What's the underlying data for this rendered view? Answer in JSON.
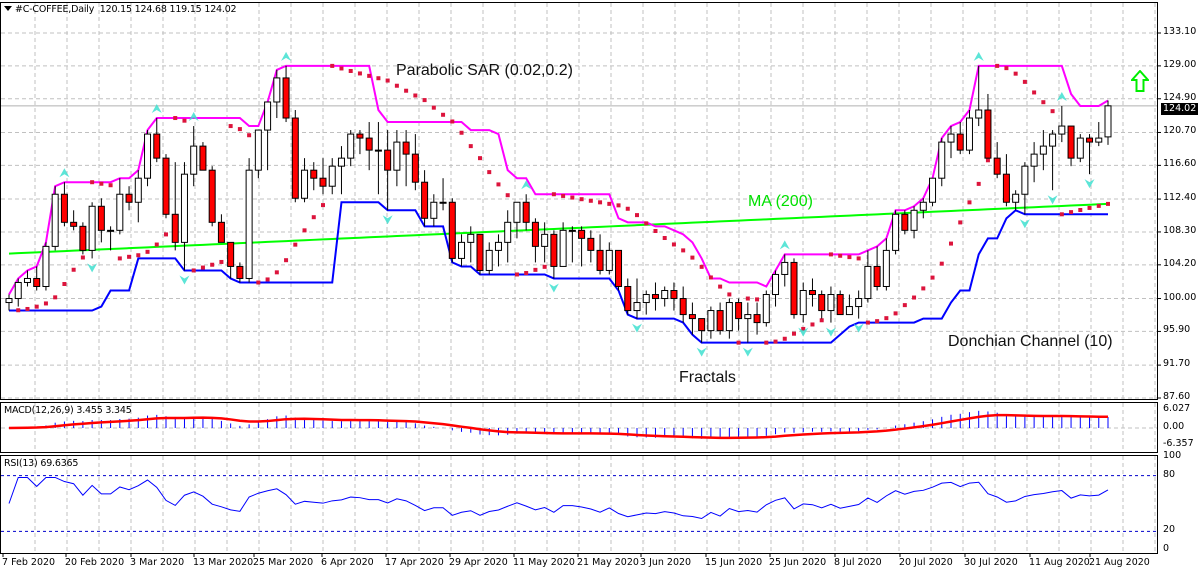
{
  "header": {
    "symbol": "#C-COFFEE,Daily",
    "ohlc": "120.15 124.68 119.15 124.02"
  },
  "annotations": {
    "sar": "Parabolic SAR (0.02,0.2)",
    "ma": "MA (200)",
    "donchian": "Donchian Channel (10)",
    "fractals": "Fractals"
  },
  "macd": {
    "label": "MACD(12,26,9) 3.455 3.345"
  },
  "rsi": {
    "label": "RSI(13) 69.6365"
  },
  "price_axis": {
    "ticks": [
      "133.10",
      "129.00",
      "124.90",
      "120.70",
      "116.60",
      "112.40",
      "108.30",
      "104.20",
      "100.00",
      "95.90",
      "91.70",
      "87.60"
    ],
    "current": "124.02"
  },
  "macd_axis": {
    "ticks": [
      "6.027",
      "0.00",
      "-6.357"
    ]
  },
  "rsi_axis": {
    "ticks": [
      "100",
      "80",
      "20",
      "0"
    ]
  },
  "time_axis": {
    "labels": [
      "7 Feb 2020",
      "20 Feb 2020",
      "3 Mar 2020",
      "13 Mar 2020",
      "25 Mar 2020",
      "6 Apr 2020",
      "17 Apr 2020",
      "29 Apr 2020",
      "11 May 2020",
      "21 May 2020",
      "3 Jun 2020",
      "15 Jun 2020",
      "25 Jun 2020",
      "8 Jul 2020",
      "20 Jul 2020",
      "30 Jul 2020",
      "11 Aug 2020",
      "21 Aug 2020"
    ]
  },
  "colors": {
    "bull": "#ffffff",
    "bear": "#ff0000",
    "donchian_upper": "#ff00ff",
    "donchian_lower": "#0000ff",
    "ma": "#00ff00",
    "sar": "#dc143c",
    "fractal": "#40e0d0",
    "macd_hist": "#0000ff",
    "macd_signal": "#ff0000",
    "rsi": "#0000ff",
    "arrow": "#00ff00"
  },
  "chart_data": {
    "type": "candlestick",
    "title": "#C-COFFEE,Daily",
    "ylim": [
      87.6,
      133.1
    ],
    "candles": [
      [
        99.5,
        100.5,
        98.5,
        100.0
      ],
      [
        100.0,
        102.5,
        99.0,
        102.0
      ],
      [
        102.0,
        103.5,
        101.5,
        102.5
      ],
      [
        102.5,
        104.0,
        101.0,
        101.5
      ],
      [
        101.5,
        107.0,
        101.0,
        106.5
      ],
      [
        106.5,
        114.0,
        106.0,
        113.0
      ],
      [
        113.0,
        114.5,
        109.0,
        109.5
      ],
      [
        109.5,
        111.0,
        108.5,
        109.0
      ],
      [
        109.0,
        109.5,
        105.5,
        106.0
      ],
      [
        106.0,
        112.0,
        105.0,
        111.5
      ],
      [
        111.5,
        112.5,
        107.0,
        108.5
      ],
      [
        108.5,
        109.0,
        106.0,
        108.5
      ],
      [
        108.5,
        115.0,
        108.0,
        113.0
      ],
      [
        113.0,
        114.0,
        111.0,
        112.0
      ],
      [
        112.0,
        116.0,
        109.5,
        115.0
      ],
      [
        115.0,
        121.0,
        114.0,
        120.5
      ],
      [
        120.5,
        122.5,
        117.0,
        117.5
      ],
      [
        117.5,
        118.0,
        110.0,
        110.5
      ],
      [
        110.5,
        117.0,
        106.0,
        107.0
      ],
      [
        107.0,
        117.0,
        103.5,
        115.5
      ],
      [
        115.5,
        121.5,
        114.0,
        119.0
      ],
      [
        119.0,
        119.5,
        116.0,
        116.0
      ],
      [
        116.0,
        116.5,
        109.0,
        109.5
      ],
      [
        109.5,
        110.5,
        107.5,
        107.0
      ],
      [
        107.0,
        105.5,
        102.5,
        104.0
      ],
      [
        104.0,
        104.5,
        102.0,
        102.5
      ],
      [
        102.5,
        117.5,
        102.0,
        116.0
      ],
      [
        116.0,
        121.0,
        115.0,
        121.0
      ],
      [
        121.0,
        124.5,
        116.0,
        124.5
      ],
      [
        124.5,
        128.5,
        122.5,
        127.5
      ],
      [
        127.5,
        129.0,
        122.0,
        122.5
      ],
      [
        122.5,
        123.5,
        112.0,
        112.5
      ],
      [
        112.5,
        117.5,
        112.0,
        116.0
      ],
      [
        116.0,
        117.0,
        113.5,
        115.0
      ],
      [
        115.0,
        117.5,
        113.0,
        114.0
      ],
      [
        114.0,
        117.5,
        113.0,
        116.5
      ],
      [
        116.5,
        119.0,
        113.0,
        117.5
      ],
      [
        117.5,
        121.0,
        116.5,
        120.5
      ],
      [
        120.5,
        121.0,
        118.0,
        120.0
      ],
      [
        120.0,
        122.0,
        116.0,
        118.5
      ],
      [
        118.5,
        122.0,
        113.0,
        118.5
      ],
      [
        118.5,
        121.0,
        111.0,
        116.0
      ],
      [
        116.0,
        121.0,
        114.0,
        119.5
      ],
      [
        119.5,
        121.0,
        114.0,
        118.0
      ],
      [
        118.0,
        120.5,
        113.5,
        114.5
      ],
      [
        114.5,
        116.0,
        109.0,
        110.0
      ],
      [
        110.0,
        113.0,
        109.0,
        112.0
      ],
      [
        112.0,
        115.0,
        111.0,
        112.0
      ],
      [
        112.0,
        112.5,
        104.5,
        105.0
      ],
      [
        105.0,
        108.0,
        104.0,
        107.0
      ],
      [
        107.0,
        109.0,
        104.5,
        108.0
      ],
      [
        108.0,
        107.5,
        103.0,
        103.5
      ],
      [
        103.5,
        107.0,
        103.0,
        106.0
      ],
      [
        106.0,
        108.0,
        104.0,
        107.0
      ],
      [
        107.0,
        111.0,
        104.5,
        109.5
      ],
      [
        109.5,
        112.0,
        107.5,
        112.0
      ],
      [
        112.0,
        113.0,
        108.5,
        109.5
      ],
      [
        109.5,
        110.0,
        104.5,
        106.5
      ],
      [
        106.5,
        109.5,
        104.5,
        108.0
      ],
      [
        108.0,
        108.5,
        102.5,
        104.0
      ],
      [
        104.0,
        109.5,
        104.0,
        108.5
      ],
      [
        108.5,
        109.0,
        104.5,
        108.5
      ],
      [
        108.5,
        109.0,
        104.0,
        107.5
      ],
      [
        107.5,
        108.5,
        104.5,
        106.0
      ],
      [
        106.0,
        108.0,
        103.0,
        103.5
      ],
      [
        103.5,
        107.0,
        103.0,
        106.0
      ],
      [
        106.0,
        105.0,
        101.0,
        101.5
      ],
      [
        101.5,
        102.5,
        98.0,
        98.5
      ],
      [
        98.5,
        102.5,
        97.5,
        99.5
      ],
      [
        99.5,
        101.0,
        98.0,
        100.5
      ],
      [
        100.5,
        102.0,
        98.5,
        100.0
      ],
      [
        100.0,
        101.5,
        99.0,
        101.0
      ],
      [
        101.0,
        102.0,
        98.5,
        100.0
      ],
      [
        100.0,
        101.5,
        97.0,
        98.0
      ],
      [
        98.0,
        99.5,
        95.5,
        97.5
      ],
      [
        97.5,
        96.5,
        94.5,
        96.0
      ],
      [
        96.0,
        99.0,
        95.0,
        98.5
      ],
      [
        98.5,
        99.5,
        95.5,
        96.0
      ],
      [
        96.0,
        100.0,
        95.0,
        99.5
      ],
      [
        99.5,
        100.0,
        96.0,
        97.5
      ],
      [
        97.5,
        99.5,
        94.5,
        98.0
      ],
      [
        98.0,
        99.5,
        95.5,
        97.0
      ],
      [
        97.0,
        101.0,
        96.5,
        100.5
      ],
      [
        100.5,
        103.5,
        99.0,
        103.0
      ],
      [
        103.0,
        105.5,
        101.5,
        104.5
      ],
      [
        104.5,
        105.0,
        97.5,
        98.0
      ],
      [
        98.0,
        102.0,
        97.0,
        101.0
      ],
      [
        101.0,
        102.5,
        99.0,
        100.5
      ],
      [
        100.5,
        101.0,
        97.5,
        98.5
      ],
      [
        98.5,
        101.5,
        97.0,
        100.5
      ],
      [
        100.5,
        101.0,
        98.0,
        98.0
      ],
      [
        98.0,
        100.5,
        98.0,
        99.0
      ],
      [
        99.0,
        101.0,
        97.5,
        100.0
      ],
      [
        100.0,
        106.0,
        99.5,
        104.0
      ],
      [
        104.0,
        106.5,
        101.0,
        101.5
      ],
      [
        101.5,
        107.5,
        101.0,
        106.0
      ],
      [
        106.0,
        111.0,
        105.5,
        110.5
      ],
      [
        110.5,
        111.0,
        108.0,
        108.5
      ],
      [
        108.5,
        111.5,
        107.5,
        111.0
      ],
      [
        111.0,
        112.5,
        110.0,
        112.0
      ],
      [
        112.0,
        115.0,
        111.5,
        115.0
      ],
      [
        115.0,
        120.0,
        114.0,
        119.5
      ],
      [
        119.5,
        121.5,
        117.5,
        120.5
      ],
      [
        120.5,
        122.0,
        118.0,
        118.5
      ],
      [
        118.5,
        123.5,
        118.0,
        122.5
      ],
      [
        122.5,
        129.0,
        121.5,
        123.5
      ],
      [
        123.5,
        125.5,
        118.0,
        117.5
      ],
      [
        117.5,
        119.5,
        115.0,
        115.5
      ],
      [
        115.5,
        118.0,
        111.5,
        112.0
      ],
      [
        112.0,
        113.5,
        111.0,
        113.0
      ],
      [
        113.0,
        117.0,
        110.5,
        116.5
      ],
      [
        116.5,
        119.5,
        114.5,
        118.0
      ],
      [
        118.0,
        121.0,
        116.0,
        119.0
      ],
      [
        119.0,
        121.0,
        113.5,
        120.5
      ],
      [
        120.5,
        124.0,
        119.5,
        121.5
      ],
      [
        121.5,
        121.5,
        116.5,
        117.5
      ],
      [
        117.5,
        120.5,
        117.0,
        120.0
      ],
      [
        120.0,
        120.5,
        115.5,
        119.5
      ],
      [
        119.5,
        122.0,
        119.0,
        120.0
      ],
      [
        120.15,
        124.68,
        119.15,
        124.02
      ]
    ],
    "indicators": [
      "Parabolic SAR (0.02,0.2)",
      "MA (200)",
      "Donchian Channel (10)",
      "Fractals",
      "MACD(12,26,9)",
      "RSI(13)"
    ],
    "macd_values": {
      "main": 3.455,
      "signal": 3.345
    },
    "rsi_value": 69.6365,
    "rsi_levels": [
      20,
      80
    ],
    "last_close": 124.02
  }
}
